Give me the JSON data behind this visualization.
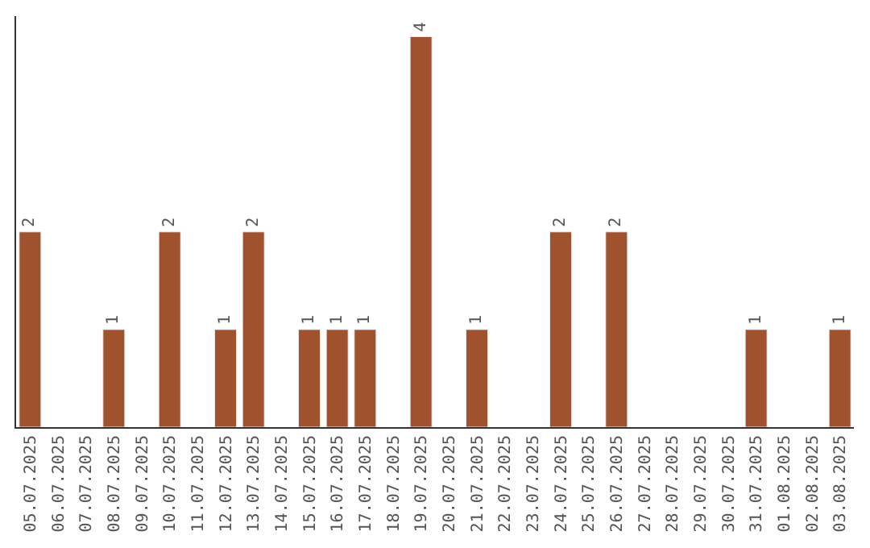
{
  "chart_data": {
    "type": "bar",
    "categories": [
      "05.07.2025",
      "06.07.2025",
      "07.07.2025",
      "08.07.2025",
      "09.07.2025",
      "10.07.2025",
      "11.07.2025",
      "12.07.2025",
      "13.07.2025",
      "14.07.2025",
      "15.07.2025",
      "16.07.2025",
      "17.07.2025",
      "18.07.2025",
      "19.07.2025",
      "20.07.2025",
      "21.07.2025",
      "22.07.2025",
      "23.07.2025",
      "24.07.2025",
      "25.07.2025",
      "26.07.2025",
      "27.07.2025",
      "28.07.2025",
      "29.07.2025",
      "30.07.2025",
      "31.07.2025",
      "01.08.2025",
      "02.08.2025",
      "03.08.2025"
    ],
    "values": [
      2,
      null,
      null,
      1,
      null,
      2,
      null,
      1,
      2,
      null,
      1,
      1,
      1,
      null,
      4,
      null,
      1,
      null,
      null,
      2,
      null,
      2,
      null,
      null,
      null,
      null,
      1,
      null,
      null,
      1
    ],
    "value_labels": [
      "2",
      null,
      null,
      "1",
      null,
      "2",
      null,
      "1",
      "2",
      null,
      "1",
      "1",
      "1",
      null,
      "4",
      null,
      "1",
      null,
      null,
      "2",
      null,
      "2",
      null,
      null,
      null,
      null,
      "1",
      null,
      null,
      "1"
    ],
    "color": "#a0522d",
    "legend": false,
    "tick_labels": "x"
  }
}
